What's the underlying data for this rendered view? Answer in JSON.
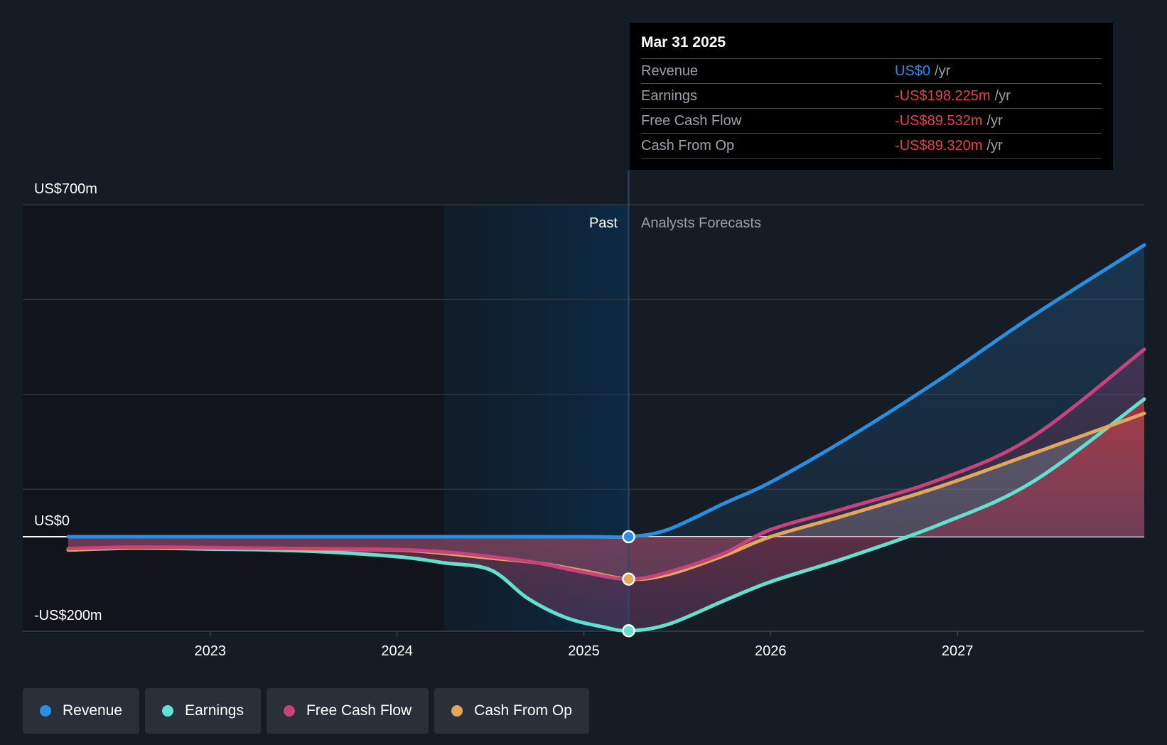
{
  "tooltip": {
    "date": "Mar 31 2025",
    "rows": [
      {
        "label": "Revenue",
        "value": "US$0",
        "unit": "/yr",
        "color": "#2a8fe0"
      },
      {
        "label": "Earnings",
        "value": "-US$198.225m",
        "unit": "/yr",
        "color": "#e8404a"
      },
      {
        "label": "Free Cash Flow",
        "value": "-US$89.532m",
        "unit": "/yr",
        "color": "#e8404a"
      },
      {
        "label": "Cash From Op",
        "value": "-US$89.320m",
        "unit": "/yr",
        "color": "#e8404a"
      }
    ]
  },
  "regions": {
    "past": "Past",
    "forecast": "Analysts Forecasts"
  },
  "legend": [
    {
      "label": "Revenue",
      "color": "#2a8fe0"
    },
    {
      "label": "Earnings",
      "color": "#63e0cf"
    },
    {
      "label": "Free Cash Flow",
      "color": "#c8437d"
    },
    {
      "label": "Cash From Op",
      "color": "#e3a75c"
    }
  ],
  "chart_data": {
    "type": "line",
    "y_axis_labels": [
      "US$700m",
      "US$0",
      "-US$200m"
    ],
    "ylim": [
      -200,
      700
    ],
    "x_ticks": [
      2023,
      2024,
      2025,
      2026,
      2027
    ],
    "xlim": [
      2022.24,
      2028.0
    ],
    "highlight_date": 2025.24,
    "past_shade_start": 2024.25,
    "series": [
      {
        "name": "Revenue",
        "color": "#2a8fe0",
        "x": [
          2022.24,
          2023.0,
          2024.0,
          2025.0,
          2025.24,
          2025.45,
          2025.75,
          2026.0,
          2026.4,
          2026.9,
          2027.4,
          2028.0
        ],
        "y": [
          0,
          0,
          0,
          0,
          0,
          15,
          70,
          115,
          205,
          330,
          465,
          615
        ]
      },
      {
        "name": "Earnings",
        "color": "#63e0cf",
        "x": [
          2022.24,
          2022.6,
          2023.0,
          2023.5,
          2024.0,
          2024.25,
          2024.5,
          2024.7,
          2024.9,
          2025.1,
          2025.24,
          2025.45,
          2025.75,
          2026.0,
          2026.4,
          2026.9,
          2027.4,
          2028.0
        ],
        "y": [
          -28,
          -24,
          -26,
          -30,
          -42,
          -55,
          -70,
          -130,
          -170,
          -190,
          -198.225,
          -185,
          -135,
          -95,
          -45,
          25,
          115,
          290
        ]
      },
      {
        "name": "Free Cash Flow",
        "color": "#c8437d",
        "x": [
          2022.24,
          2022.6,
          2023.0,
          2023.5,
          2024.0,
          2024.25,
          2024.5,
          2024.75,
          2025.0,
          2025.24,
          2025.45,
          2025.75,
          2026.0,
          2026.4,
          2026.9,
          2027.4,
          2028.0
        ],
        "y": [
          -25,
          -22,
          -23,
          -25,
          -27,
          -32,
          -42,
          -55,
          -75,
          -89.532,
          -75,
          -35,
          15,
          60,
          120,
          210,
          395
        ]
      },
      {
        "name": "Cash From Op",
        "color": "#e3a75c",
        "x": [
          2022.24,
          2022.6,
          2023.0,
          2023.5,
          2024.0,
          2024.25,
          2024.5,
          2024.75,
          2025.0,
          2025.24,
          2025.45,
          2025.75,
          2026.0,
          2026.4,
          2026.9,
          2027.4,
          2028.0
        ],
        "y": [
          -28,
          -23,
          -24,
          -26,
          -28,
          -35,
          -45,
          -55,
          -72,
          -89.32,
          -80,
          -40,
          0,
          45,
          105,
          175,
          260
        ]
      }
    ]
  }
}
